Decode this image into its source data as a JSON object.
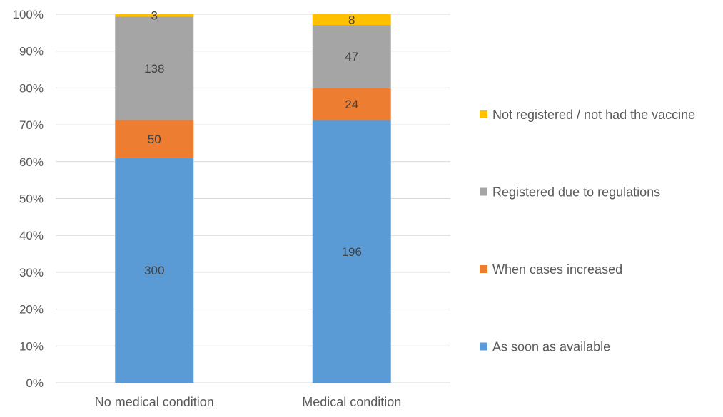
{
  "chart_data": {
    "type": "bar",
    "stacked": true,
    "normalized": true,
    "title": "",
    "xlabel": "",
    "ylabel": "",
    "ylim": [
      0,
      100
    ],
    "y_tick_step": 10,
    "y_tick_suffix": "%",
    "grid": true,
    "legend_position": "right",
    "categories": [
      "No medical condition",
      "Medical condition"
    ],
    "series": [
      {
        "name": "As soon as available",
        "color": "#5B9BD5",
        "values": [
          300,
          196
        ]
      },
      {
        "name": "When cases increased",
        "color": "#ED7D31",
        "values": [
          50,
          24
        ]
      },
      {
        "name": "Registered due to regulations",
        "color": "#A5A5A5",
        "values": [
          138,
          47
        ]
      },
      {
        "name": "Not registered / not had the vaccine",
        "color": "#FFC000",
        "values": [
          3,
          8
        ]
      }
    ]
  }
}
